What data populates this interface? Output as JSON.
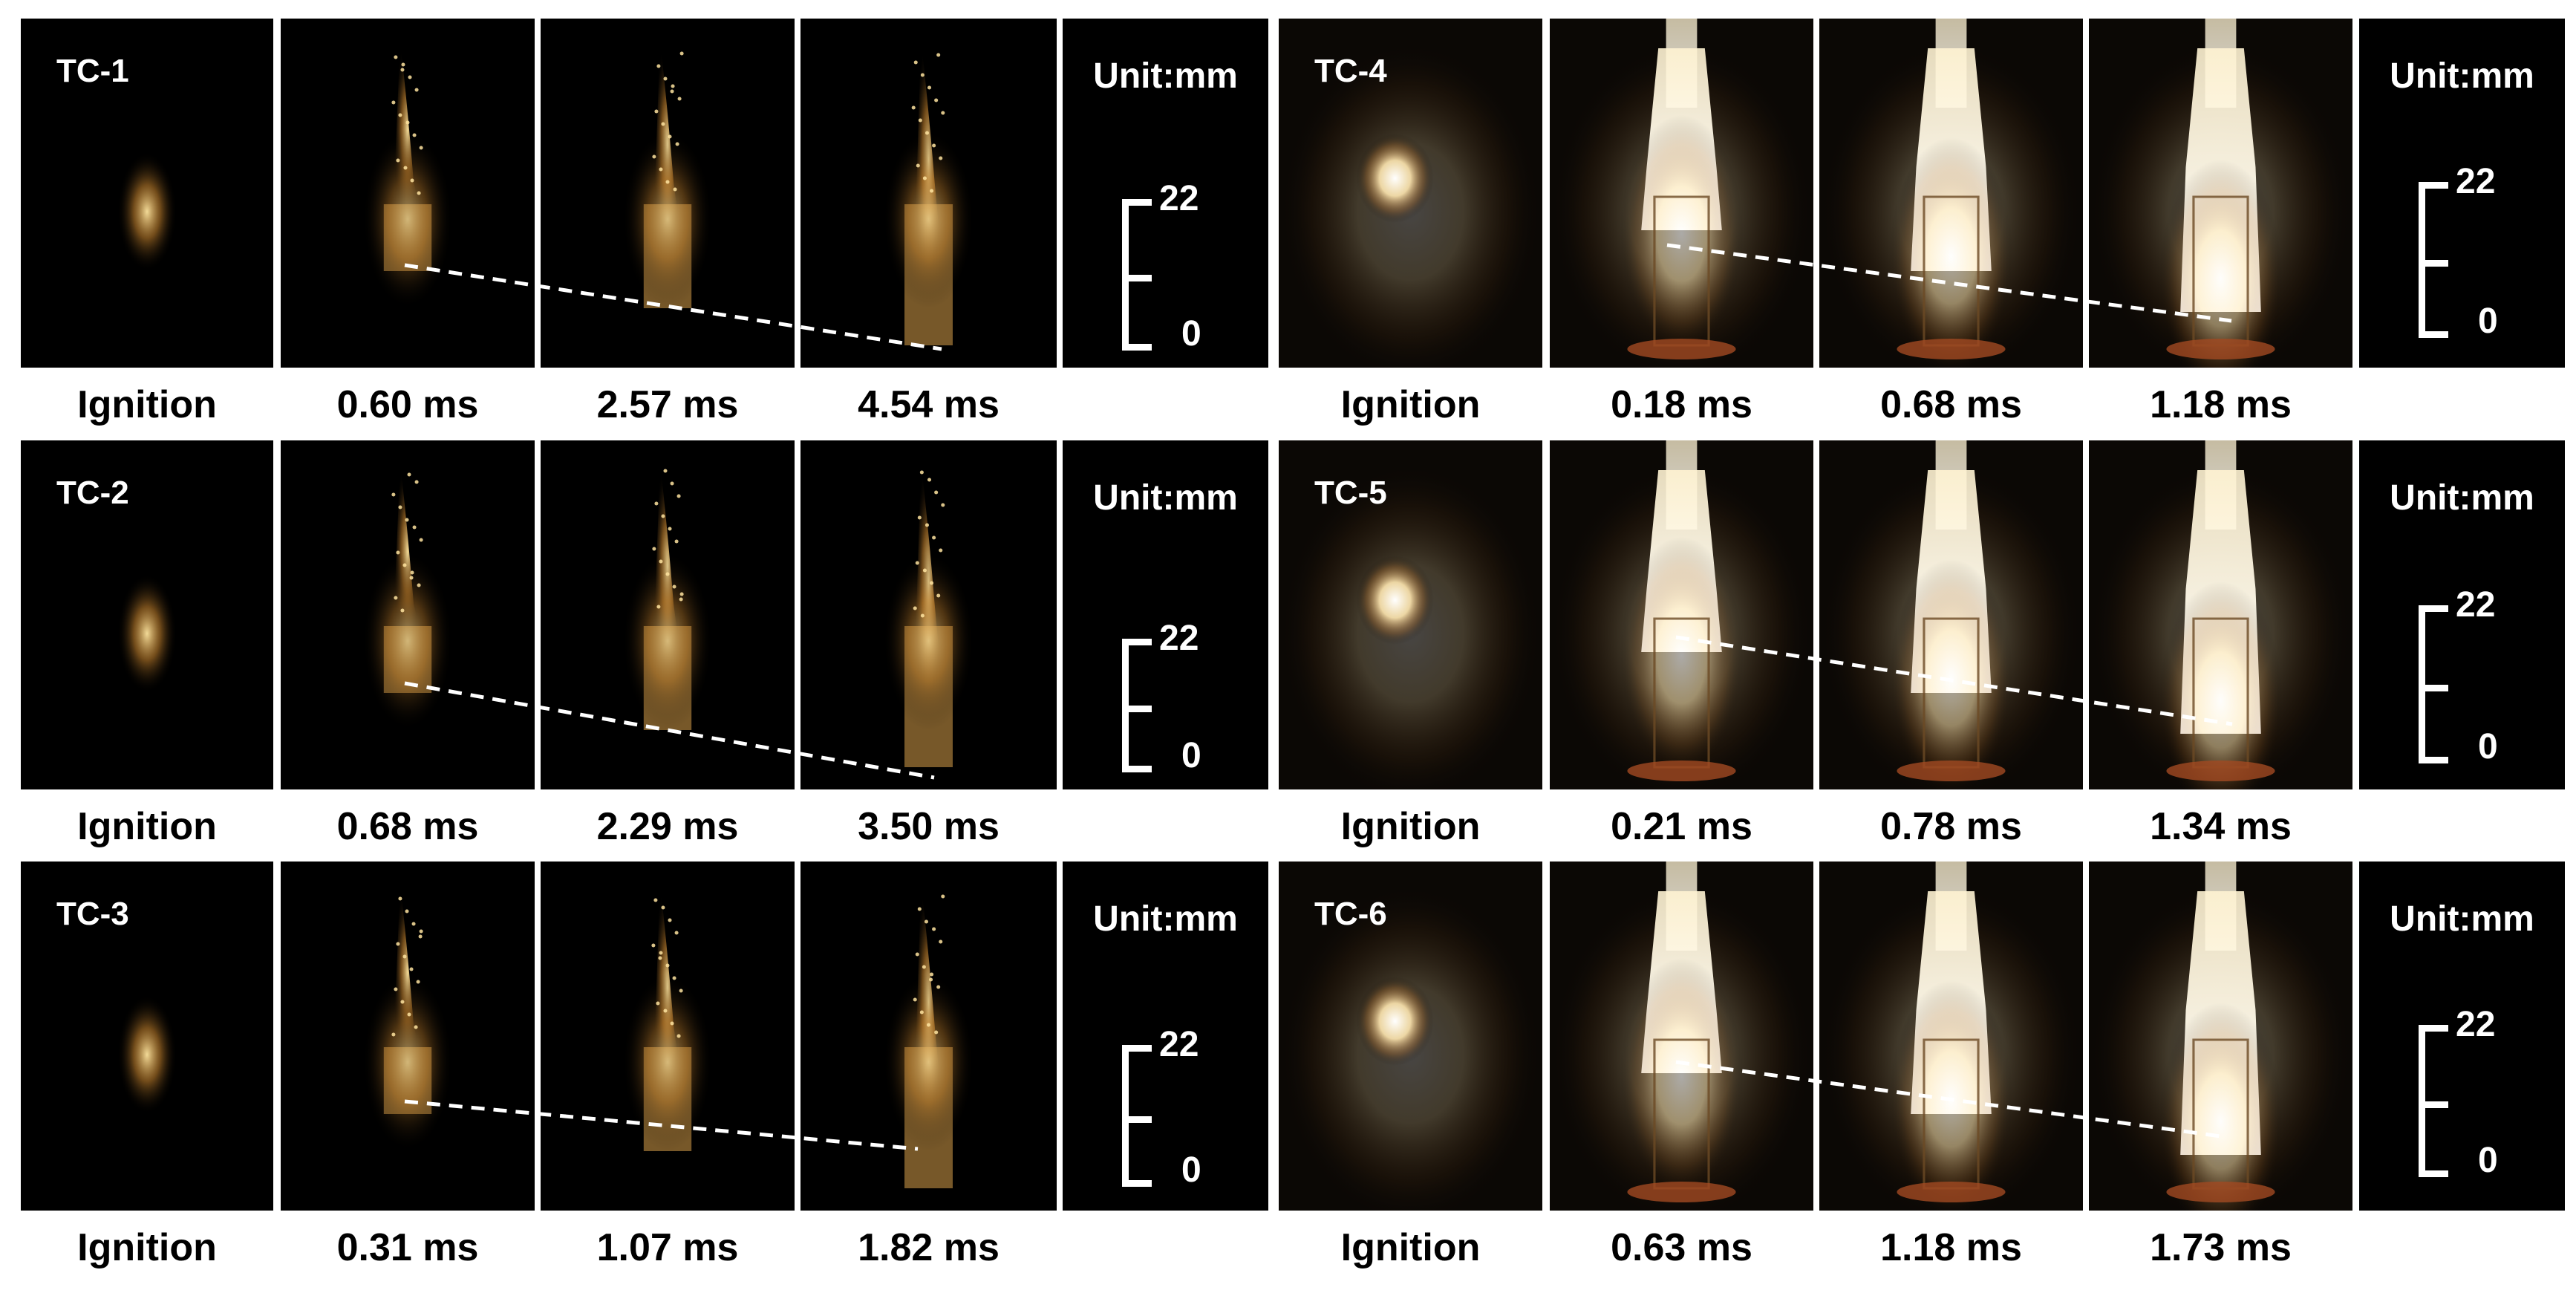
{
  "rows": [
    {
      "left": {
        "tc": "TC-1",
        "captions": [
          "Ignition",
          "0.60 ms",
          "2.57 ms",
          "4.54 ms"
        ]
      },
      "right": {
        "tc": "TC-4",
        "captions": [
          "Ignition",
          "0.18 ms",
          "0.68 ms",
          "1.18 ms"
        ]
      }
    },
    {
      "left": {
        "tc": "TC-2",
        "captions": [
          "Ignition",
          "0.68 ms",
          "2.29 ms",
          "3.50 ms"
        ]
      },
      "right": {
        "tc": "TC-5",
        "captions": [
          "Ignition",
          "0.21 ms",
          "0.78 ms",
          "1.34 ms"
        ]
      }
    },
    {
      "left": {
        "tc": "TC-3",
        "captions": [
          "Ignition",
          "0.31 ms",
          "1.07 ms",
          "1.82 ms"
        ]
      },
      "right": {
        "tc": "TC-6",
        "captions": [
          "Ignition",
          "0.63 ms",
          "1.18 ms",
          "1.73 ms"
        ]
      }
    }
  ],
  "scale": {
    "unit": "Unit:mm",
    "max": "22",
    "min": "0"
  },
  "colors": {
    "background": "#ffffff",
    "frame": "#000000",
    "flame": "#ffe7a8",
    "text": "#000000",
    "overlay_text": "#ffffff"
  }
}
